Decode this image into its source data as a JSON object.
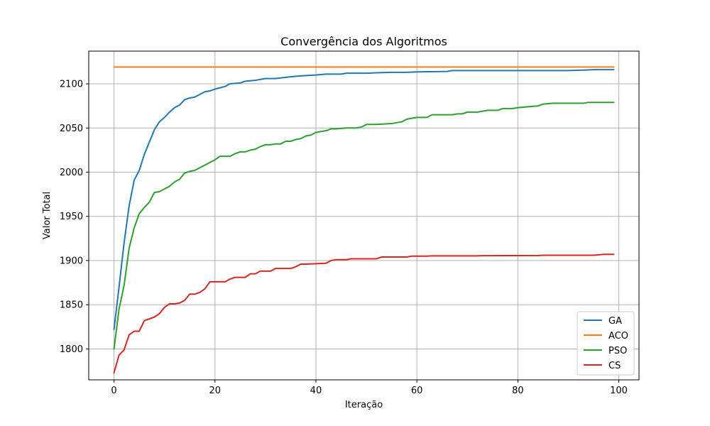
{
  "chart_data": {
    "type": "line",
    "title": "Convergência dos Algoritmos",
    "xlabel": "Iteração",
    "ylabel": "Valor Total",
    "xlim": [
      -5,
      104
    ],
    "ylim": [
      1765,
      2137
    ],
    "xticks": [
      0,
      20,
      40,
      60,
      80,
      100
    ],
    "yticks": [
      1800,
      1850,
      1900,
      1950,
      2000,
      2050,
      2100
    ],
    "grid": true,
    "legend_position": "lower-right",
    "series": [
      {
        "name": "GA",
        "color": "#1f77b4",
        "points": [
          [
            0,
            1822
          ],
          [
            1,
            1870
          ],
          [
            2,
            1920
          ],
          [
            3,
            1962
          ],
          [
            4,
            1991
          ],
          [
            5,
            2002
          ],
          [
            6,
            2020
          ],
          [
            7,
            2034
          ],
          [
            8,
            2048
          ],
          [
            9,
            2057
          ],
          [
            10,
            2062
          ],
          [
            11,
            2068
          ],
          [
            12,
            2073
          ],
          [
            13,
            2076
          ],
          [
            14,
            2082
          ],
          [
            15,
            2084
          ],
          [
            16,
            2085
          ],
          [
            17,
            2088
          ],
          [
            18,
            2091
          ],
          [
            19,
            2092
          ],
          [
            20,
            2094
          ],
          [
            22,
            2097
          ],
          [
            23,
            2100
          ],
          [
            25,
            2101
          ],
          [
            26,
            2103
          ],
          [
            28,
            2104
          ],
          [
            30,
            2106
          ],
          [
            32,
            2106
          ],
          [
            35,
            2108
          ],
          [
            37,
            2109
          ],
          [
            40,
            2110
          ],
          [
            42,
            2111
          ],
          [
            45,
            2111
          ],
          [
            46,
            2112
          ],
          [
            50,
            2112
          ],
          [
            52,
            2112.5
          ],
          [
            55,
            2113
          ],
          [
            58,
            2113
          ],
          [
            60,
            2113.5
          ],
          [
            66,
            2114
          ],
          [
            67,
            2115
          ],
          [
            70,
            2115
          ],
          [
            80,
            2115
          ],
          [
            90,
            2115
          ],
          [
            93,
            2115.5
          ],
          [
            95,
            2116
          ],
          [
            99,
            2116
          ]
        ]
      },
      {
        "name": "ACO",
        "color": "#ff7f0e",
        "points": [
          [
            0,
            2119
          ],
          [
            99,
            2119
          ]
        ]
      },
      {
        "name": "PSO",
        "color": "#2ca02c",
        "points": [
          [
            0,
            1800
          ],
          [
            1,
            1845
          ],
          [
            2,
            1872
          ],
          [
            3,
            1914
          ],
          [
            4,
            1937
          ],
          [
            5,
            1953
          ],
          [
            6,
            1960
          ],
          [
            7,
            1966
          ],
          [
            8,
            1977
          ],
          [
            9,
            1978
          ],
          [
            10,
            1981
          ],
          [
            11,
            1984
          ],
          [
            12,
            1989
          ],
          [
            13,
            1992
          ],
          [
            14,
            1999
          ],
          [
            15,
            2001
          ],
          [
            16,
            2002
          ],
          [
            17,
            2005
          ],
          [
            18,
            2008
          ],
          [
            19,
            2011
          ],
          [
            20,
            2014
          ],
          [
            21,
            2018
          ],
          [
            23,
            2018
          ],
          [
            24,
            2021
          ],
          [
            25,
            2023
          ],
          [
            26,
            2023
          ],
          [
            27,
            2025
          ],
          [
            28,
            2026
          ],
          [
            29,
            2029
          ],
          [
            30,
            2031
          ],
          [
            31,
            2031
          ],
          [
            32,
            2032
          ],
          [
            33,
            2032
          ],
          [
            34,
            2035
          ],
          [
            35,
            2035
          ],
          [
            36,
            2037
          ],
          [
            37,
            2038
          ],
          [
            38,
            2041
          ],
          [
            39,
            2042
          ],
          [
            40,
            2045
          ],
          [
            41,
            2046
          ],
          [
            42,
            2047
          ],
          [
            43,
            2049
          ],
          [
            44,
            2049
          ],
          [
            46,
            2050
          ],
          [
            47,
            2050
          ],
          [
            48,
            2050
          ],
          [
            49,
            2051
          ],
          [
            50,
            2054
          ],
          [
            52,
            2054
          ],
          [
            55,
            2055
          ],
          [
            57,
            2057
          ],
          [
            58,
            2060
          ],
          [
            59,
            2061
          ],
          [
            60,
            2062
          ],
          [
            62,
            2062
          ],
          [
            63,
            2065
          ],
          [
            67,
            2065
          ],
          [
            68,
            2066
          ],
          [
            69,
            2066
          ],
          [
            70,
            2068
          ],
          [
            72,
            2068
          ],
          [
            73,
            2069
          ],
          [
            74,
            2070
          ],
          [
            76,
            2070
          ],
          [
            77,
            2072
          ],
          [
            79,
            2072
          ],
          [
            80,
            2073
          ],
          [
            82,
            2074
          ],
          [
            84,
            2075
          ],
          [
            85,
            2077
          ],
          [
            87,
            2078
          ],
          [
            89,
            2078
          ],
          [
            93,
            2078
          ],
          [
            94,
            2079
          ],
          [
            99,
            2079
          ]
        ]
      },
      {
        "name": "CS",
        "color": "#d62728",
        "points": [
          [
            0,
            1773
          ],
          [
            1,
            1793
          ],
          [
            2,
            1799
          ],
          [
            3,
            1816
          ],
          [
            4,
            1820
          ],
          [
            5,
            1820
          ],
          [
            6,
            1832
          ],
          [
            7,
            1834
          ],
          [
            8,
            1836
          ],
          [
            9,
            1840
          ],
          [
            10,
            1847
          ],
          [
            11,
            1851
          ],
          [
            12,
            1851
          ],
          [
            13,
            1852
          ],
          [
            14,
            1855
          ],
          [
            15,
            1862
          ],
          [
            16,
            1862
          ],
          [
            17,
            1864
          ],
          [
            18,
            1868
          ],
          [
            19,
            1876
          ],
          [
            20,
            1876
          ],
          [
            22,
            1876
          ],
          [
            23,
            1879
          ],
          [
            24,
            1881
          ],
          [
            25,
            1881
          ],
          [
            26,
            1881
          ],
          [
            27,
            1885
          ],
          [
            28,
            1885
          ],
          [
            29,
            1888
          ],
          [
            30,
            1888
          ],
          [
            31,
            1888
          ],
          [
            32,
            1891
          ],
          [
            35,
            1891
          ],
          [
            36,
            1893
          ],
          [
            37,
            1896
          ],
          [
            38,
            1896
          ],
          [
            42,
            1897
          ],
          [
            43,
            1900
          ],
          [
            44,
            1901
          ],
          [
            46,
            1901
          ],
          [
            47,
            1902
          ],
          [
            52,
            1902
          ],
          [
            53,
            1904
          ],
          [
            58,
            1904
          ],
          [
            59,
            1905
          ],
          [
            62,
            1905
          ],
          [
            63,
            1905.3
          ],
          [
            72,
            1905.3
          ],
          [
            73,
            1905.5
          ],
          [
            84,
            1905.7
          ],
          [
            85,
            1906
          ],
          [
            95,
            1906
          ],
          [
            96,
            1906.5
          ],
          [
            97,
            1907
          ],
          [
            99,
            1907
          ]
        ]
      }
    ]
  }
}
